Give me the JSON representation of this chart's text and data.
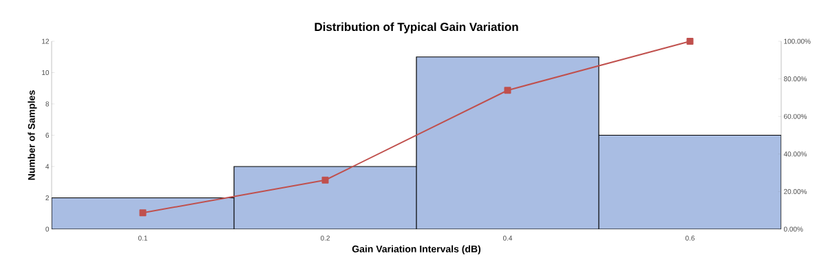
{
  "chart_data": {
    "type": "bar",
    "title": "Distribution of Typical Gain Variation",
    "xlabel": "Gain Variation Intervals (dB)",
    "ylabel": "Number of Samples",
    "categories": [
      "0.1",
      "0.2",
      "0.4",
      "0.6"
    ],
    "series": [
      {
        "color": "#a9bde3",
        "values": [
          2,
          4,
          11,
          6
        ]
      },
      {
        "type": "line",
        "axis": "y2",
        "color": "#c0504d",
        "marker": "square",
        "values": [
          8.7,
          26.1,
          73.9,
          100
        ]
      }
    ],
    "ylim": [
      0,
      12
    ],
    "yticks": [
      0,
      2,
      4,
      6,
      8,
      10,
      12
    ],
    "y2lim": [
      0,
      100
    ],
    "y2ticks": [
      {
        "value": 0,
        "label": "0.00%"
      },
      {
        "value": 20,
        "label": "20.00%"
      },
      {
        "value": 40,
        "label": "40.00%"
      },
      {
        "value": 60,
        "label": "60.00%"
      },
      {
        "value": 80,
        "label": "80.00%"
      },
      {
        "value": 100,
        "label": "100.00%"
      }
    ]
  }
}
